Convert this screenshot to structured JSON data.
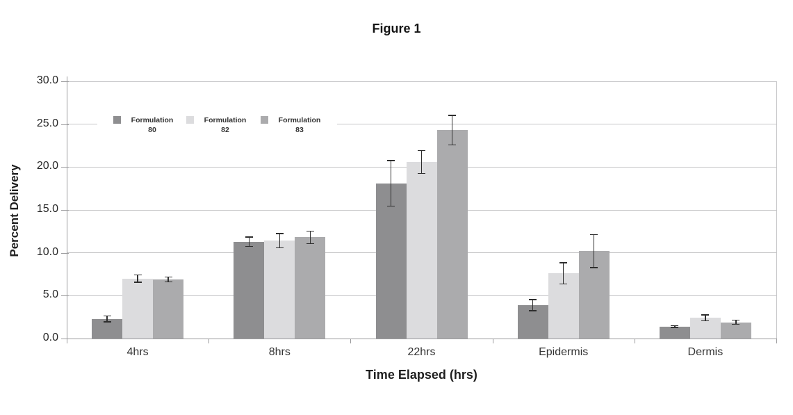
{
  "figure": {
    "title": "Figure 1"
  },
  "chart_data": {
    "type": "bar",
    "title": "Figure 1",
    "xlabel": "Time Elapsed (hrs)",
    "ylabel": "Percent Delivery",
    "ylim": [
      0,
      30
    ],
    "grid": true,
    "legend_position": "inside-top-left",
    "yticks": [
      {
        "label": "0.0",
        "value": 0
      },
      {
        "label": "5.0",
        "value": 5
      },
      {
        "label": "10.0",
        "value": 10
      },
      {
        "label": "15.0",
        "value": 15
      },
      {
        "label": "20.0",
        "value": 20
      },
      {
        "label": "25.0",
        "value": 25
      },
      {
        "label": "30.0",
        "value": 30
      }
    ],
    "categories": [
      "4hrs",
      "8hrs",
      "22hrs",
      "Epidermis",
      "Dermis"
    ],
    "series": [
      {
        "name": "Formulation 80",
        "legend_lines": [
          "Formulation",
          "80"
        ],
        "color": "#8e8e90",
        "values": [
          2.3,
          11.3,
          18.1,
          3.9,
          1.4
        ],
        "errors": [
          0.4,
          0.6,
          2.7,
          0.7,
          0.15
        ]
      },
      {
        "name": "Formulation 82",
        "legend_lines": [
          "Formulation",
          "82"
        ],
        "color": "#dcdcde",
        "values": [
          7.0,
          11.4,
          20.6,
          7.6,
          2.4
        ],
        "errors": [
          0.5,
          0.9,
          1.4,
          1.3,
          0.4
        ]
      },
      {
        "name": "Formulation 83",
        "legend_lines": [
          "Formulation",
          "83"
        ],
        "color": "#ababad",
        "values": [
          6.9,
          11.8,
          24.3,
          10.2,
          1.9
        ],
        "errors": [
          0.35,
          0.8,
          1.8,
          2.0,
          0.3
        ]
      }
    ],
    "colors": {
      "gridline": "#c5c5c7",
      "axis": "#9a9a9c",
      "error_bar": "#2e2e2e",
      "text": "#262626",
      "background": "#ffffff"
    }
  }
}
